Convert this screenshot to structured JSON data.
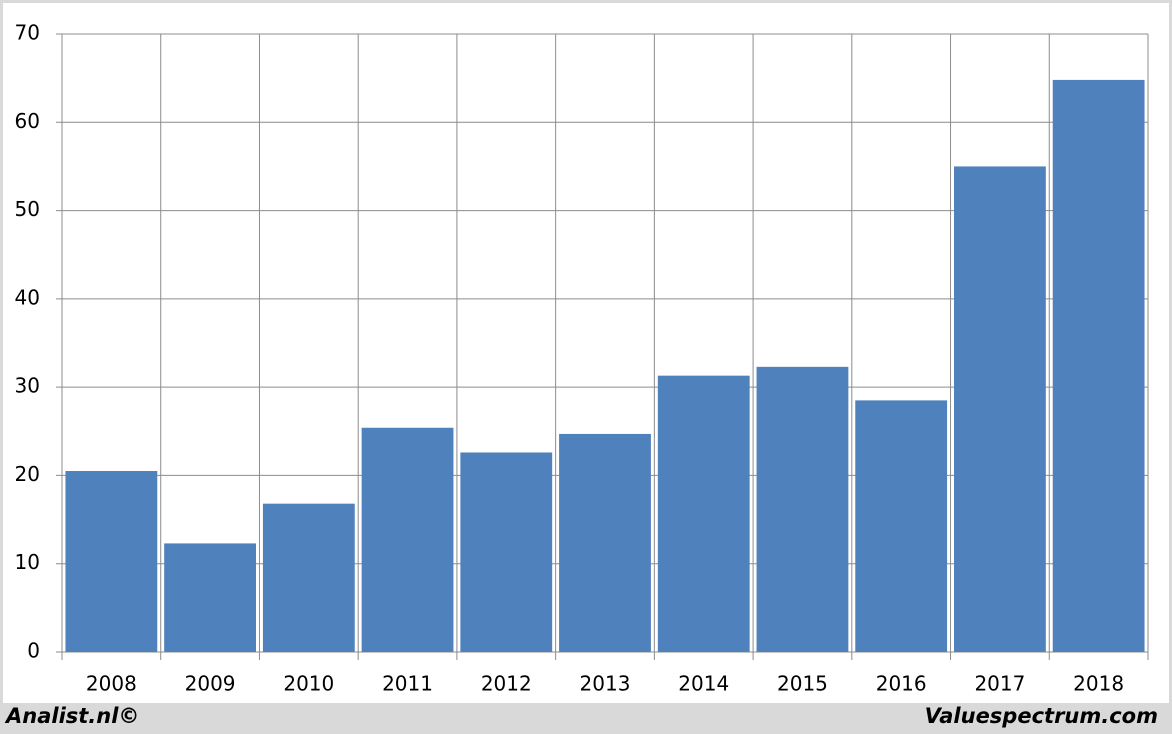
{
  "chart_data": {
    "type": "bar",
    "categories": [
      "2008",
      "2009",
      "2010",
      "2011",
      "2012",
      "2013",
      "2014",
      "2015",
      "2016",
      "2017",
      "2018"
    ],
    "values": [
      20.5,
      12.3,
      16.8,
      25.4,
      22.6,
      24.7,
      31.3,
      32.3,
      28.5,
      55.0,
      64.8
    ],
    "color": "#4f81bd",
    "ylim": [
      0,
      70
    ],
    "yticks": [
      0,
      10,
      20,
      30,
      40,
      50,
      60,
      70
    ],
    "grid": true
  },
  "footer": {
    "left": "Analist.nl©",
    "right": "Valuespectrum.com"
  }
}
